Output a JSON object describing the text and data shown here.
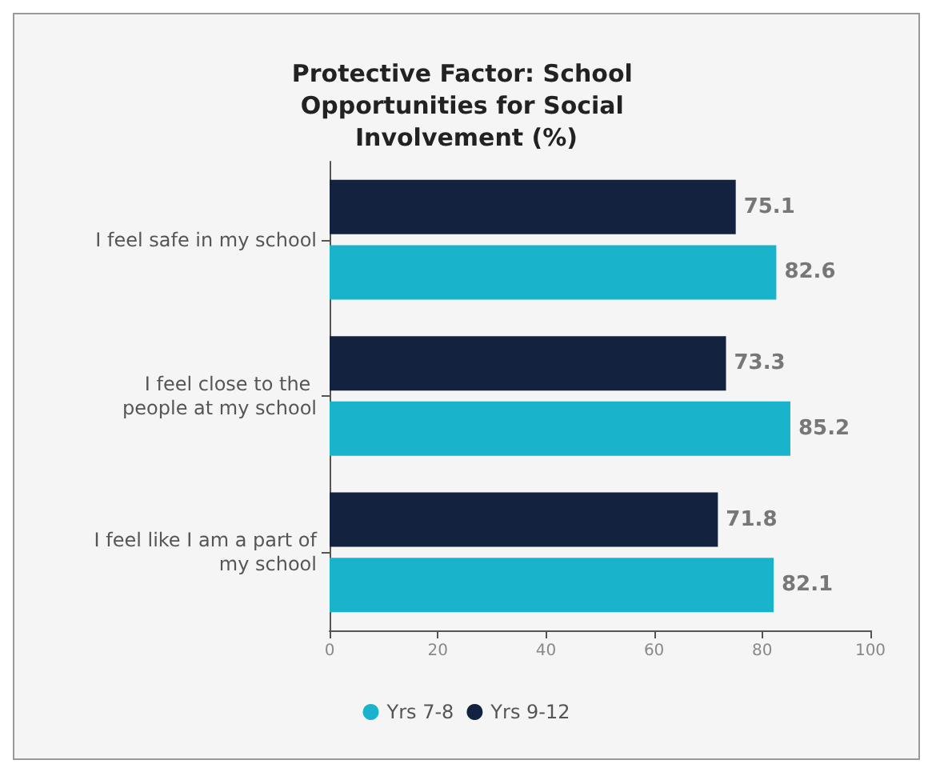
{
  "chart_data": {
    "type": "bar",
    "orientation": "horizontal",
    "title": "Protective Factor: School Opportunities for Social Involvement (%)",
    "categories": [
      "I feel safe in my school",
      "I feel close to the people at my school",
      "I feel like I am a part of my school"
    ],
    "series": [
      {
        "name": "Yrs 7-8",
        "color": "#1ab3cc",
        "values": [
          82.6,
          85.2,
          82.1
        ]
      },
      {
        "name": "Yrs 9-12",
        "color": "#13233f",
        "values": [
          75.1,
          73.3,
          71.8
        ]
      }
    ],
    "xlim": [
      0,
      100
    ],
    "xticks": [
      0,
      20,
      40,
      60,
      80,
      100
    ],
    "data_labels": true,
    "grid": false,
    "legend": "bottom"
  }
}
